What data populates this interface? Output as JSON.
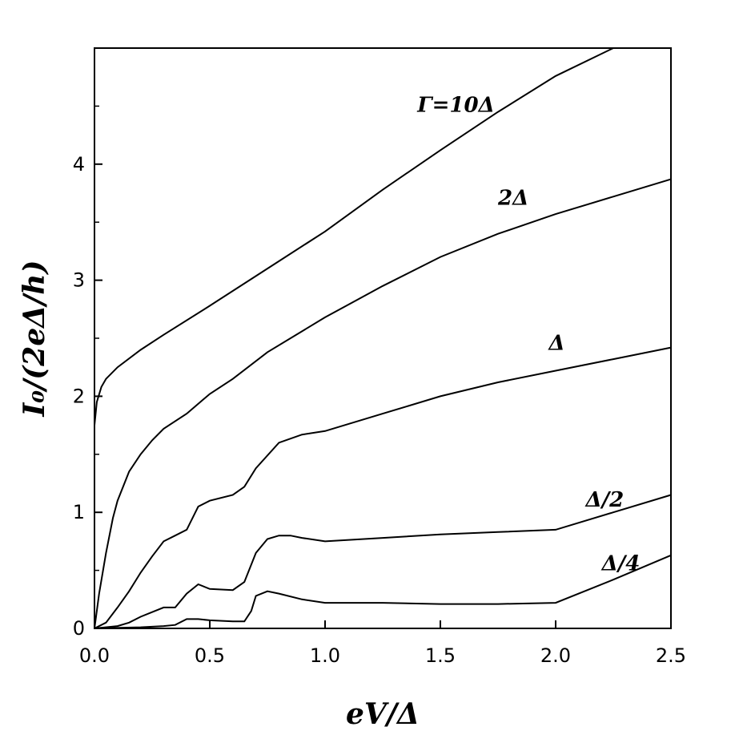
{
  "chart_data": {
    "type": "line",
    "xlabel": "eV/Δ",
    "ylabel": "I₀/(2eΔ/h)",
    "xlim": [
      0,
      2.5
    ],
    "ylim": [
      0,
      5
    ],
    "x_ticks": [
      "0.0",
      "0.5",
      "1.0",
      "1.5",
      "2.0",
      "2.5"
    ],
    "y_ticks": [
      "0",
      "1",
      "2",
      "3",
      "4"
    ],
    "grid": false,
    "series": [
      {
        "name": "Γ=10Δ",
        "x": [
          0.0,
          0.01,
          0.03,
          0.05,
          0.1,
          0.2,
          0.3,
          0.5,
          0.75,
          1.0,
          1.25,
          1.5,
          1.75,
          2.0,
          2.25,
          2.5
        ],
        "y": [
          1.75,
          1.95,
          2.08,
          2.15,
          2.25,
          2.4,
          2.53,
          2.78,
          3.1,
          3.42,
          3.78,
          4.12,
          4.45,
          4.76,
          5.06,
          5.37
        ]
      },
      {
        "name": "2Δ",
        "x": [
          0.0,
          0.02,
          0.05,
          0.08,
          0.1,
          0.15,
          0.2,
          0.25,
          0.3,
          0.4,
          0.5,
          0.6,
          0.75,
          1.0,
          1.25,
          1.5,
          1.75,
          2.0,
          2.25,
          2.5
        ],
        "y": [
          0.0,
          0.3,
          0.65,
          0.95,
          1.1,
          1.35,
          1.5,
          1.62,
          1.72,
          1.85,
          2.02,
          2.15,
          2.38,
          2.68,
          2.95,
          3.2,
          3.4,
          3.57,
          3.72,
          3.87
        ]
      },
      {
        "name": "Δ",
        "x": [
          0.0,
          0.05,
          0.1,
          0.15,
          0.2,
          0.25,
          0.3,
          0.35,
          0.4,
          0.45,
          0.5,
          0.6,
          0.65,
          0.7,
          0.8,
          0.9,
          1.0,
          1.25,
          1.5,
          1.75,
          2.0,
          2.25,
          2.5
        ],
        "y": [
          0.0,
          0.05,
          0.18,
          0.32,
          0.48,
          0.62,
          0.75,
          0.8,
          0.85,
          1.05,
          1.1,
          1.15,
          1.22,
          1.38,
          1.6,
          1.67,
          1.7,
          1.85,
          2.0,
          2.12,
          2.22,
          2.32,
          2.42
        ]
      },
      {
        "name": "Δ/2",
        "x": [
          0.0,
          0.1,
          0.15,
          0.2,
          0.25,
          0.3,
          0.35,
          0.4,
          0.45,
          0.5,
          0.6,
          0.65,
          0.7,
          0.75,
          0.8,
          0.85,
          0.9,
          1.0,
          1.25,
          1.5,
          1.75,
          2.0,
          2.25,
          2.5
        ],
        "y": [
          0.0,
          0.02,
          0.05,
          0.1,
          0.14,
          0.18,
          0.18,
          0.3,
          0.38,
          0.34,
          0.33,
          0.4,
          0.65,
          0.77,
          0.8,
          0.8,
          0.78,
          0.75,
          0.78,
          0.81,
          0.83,
          0.85,
          1.0,
          1.15
        ]
      },
      {
        "name": "Δ/4",
        "x": [
          0.0,
          0.2,
          0.3,
          0.35,
          0.4,
          0.45,
          0.5,
          0.6,
          0.65,
          0.68,
          0.7,
          0.75,
          0.8,
          0.9,
          1.0,
          1.25,
          1.5,
          1.75,
          2.0,
          2.25,
          2.5
        ],
        "y": [
          0.0,
          0.01,
          0.02,
          0.03,
          0.08,
          0.08,
          0.07,
          0.06,
          0.06,
          0.15,
          0.28,
          0.32,
          0.3,
          0.25,
          0.22,
          0.22,
          0.21,
          0.21,
          0.22,
          0.42,
          0.63
        ]
      }
    ],
    "curve_labels": [
      {
        "text": "Γ=10Δ",
        "x": 1.4,
        "y": 4.45
      },
      {
        "text": "2Δ",
        "x": 1.75,
        "y": 3.65
      },
      {
        "text": "Δ",
        "x": 1.97,
        "y": 2.4
      },
      {
        "text": "Δ/2",
        "x": 2.13,
        "y": 1.05
      },
      {
        "text": "Δ/4",
        "x": 2.2,
        "y": 0.5
      }
    ]
  }
}
